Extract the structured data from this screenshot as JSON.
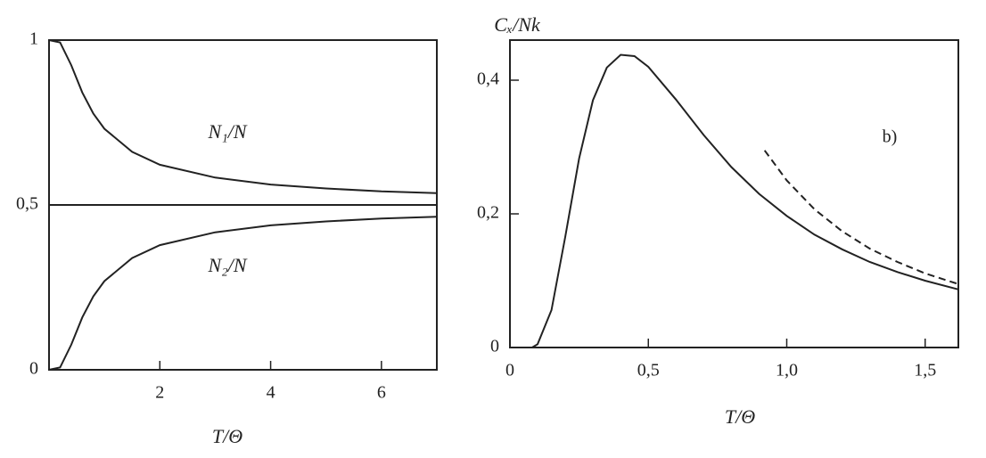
{
  "chart_data": [
    {
      "type": "line",
      "x_label": "T/Θ",
      "xlim": [
        0,
        7
      ],
      "ylim": [
        0,
        1
      ],
      "xticks": [
        2,
        4,
        6
      ],
      "yticks": [
        0,
        {
          "value": 0.5,
          "label": "0,5"
        },
        1
      ],
      "reference_line": 0.5,
      "series": [
        {
          "name": "N₁/N",
          "color": "#222",
          "dashed": false,
          "x": [
            0,
            0.2,
            0.4,
            0.6,
            0.8,
            1,
            1.5,
            2,
            3,
            4,
            5,
            6,
            7
          ],
          "values": [
            1,
            0.993,
            0.924,
            0.841,
            0.777,
            0.731,
            0.661,
            0.622,
            0.583,
            0.562,
            0.55,
            0.541,
            0.536
          ]
        },
        {
          "name": "N₂/N",
          "color": "#222",
          "dashed": false,
          "x": [
            0,
            0.2,
            0.4,
            0.6,
            0.8,
            1,
            1.5,
            2,
            3,
            4,
            5,
            6,
            7
          ],
          "values": [
            0,
            0.007,
            0.076,
            0.159,
            0.223,
            0.269,
            0.339,
            0.378,
            0.417,
            0.438,
            0.45,
            0.459,
            0.464
          ]
        }
      ]
    },
    {
      "type": "line",
      "x_label": "T/Θ",
      "y_label": "Cₓ/Nk",
      "annotation": "b)",
      "xlim": [
        0,
        1.62
      ],
      "ylim": [
        0,
        0.46
      ],
      "xticks": [
        0,
        {
          "value": 0.5,
          "label": "0,5"
        },
        {
          "value": 1,
          "label": "1,0"
        },
        {
          "value": 1.5,
          "label": "1,5"
        }
      ],
      "yticks": [
        0,
        {
          "value": 0.2,
          "label": "0,2"
        },
        {
          "value": 0.4,
          "label": "0,4"
        }
      ],
      "series": [
        {
          "color": "#222",
          "dashed": false,
          "x": [
            0.08,
            0.1,
            0.15,
            0.2,
            0.25,
            0.3,
            0.35,
            0.4,
            0.45,
            0.5,
            0.6,
            0.7,
            0.8,
            0.9,
            1,
            1.1,
            1.2,
            1.3,
            1.4,
            1.5,
            1.62
          ],
          "values": [
            0,
            0.005,
            0.056,
            0.166,
            0.283,
            0.37,
            0.419,
            0.438,
            0.436,
            0.42,
            0.371,
            0.318,
            0.27,
            0.23,
            0.197,
            0.169,
            0.147,
            0.128,
            0.113,
            0.1,
            0.087
          ]
        },
        {
          "color": "#222",
          "dashed": true,
          "x": [
            0.92,
            1,
            1.1,
            1.2,
            1.3,
            1.4,
            1.5,
            1.62
          ],
          "values": [
            0.295,
            0.25,
            0.207,
            0.174,
            0.148,
            0.128,
            0.111,
            0.095
          ]
        }
      ]
    }
  ]
}
